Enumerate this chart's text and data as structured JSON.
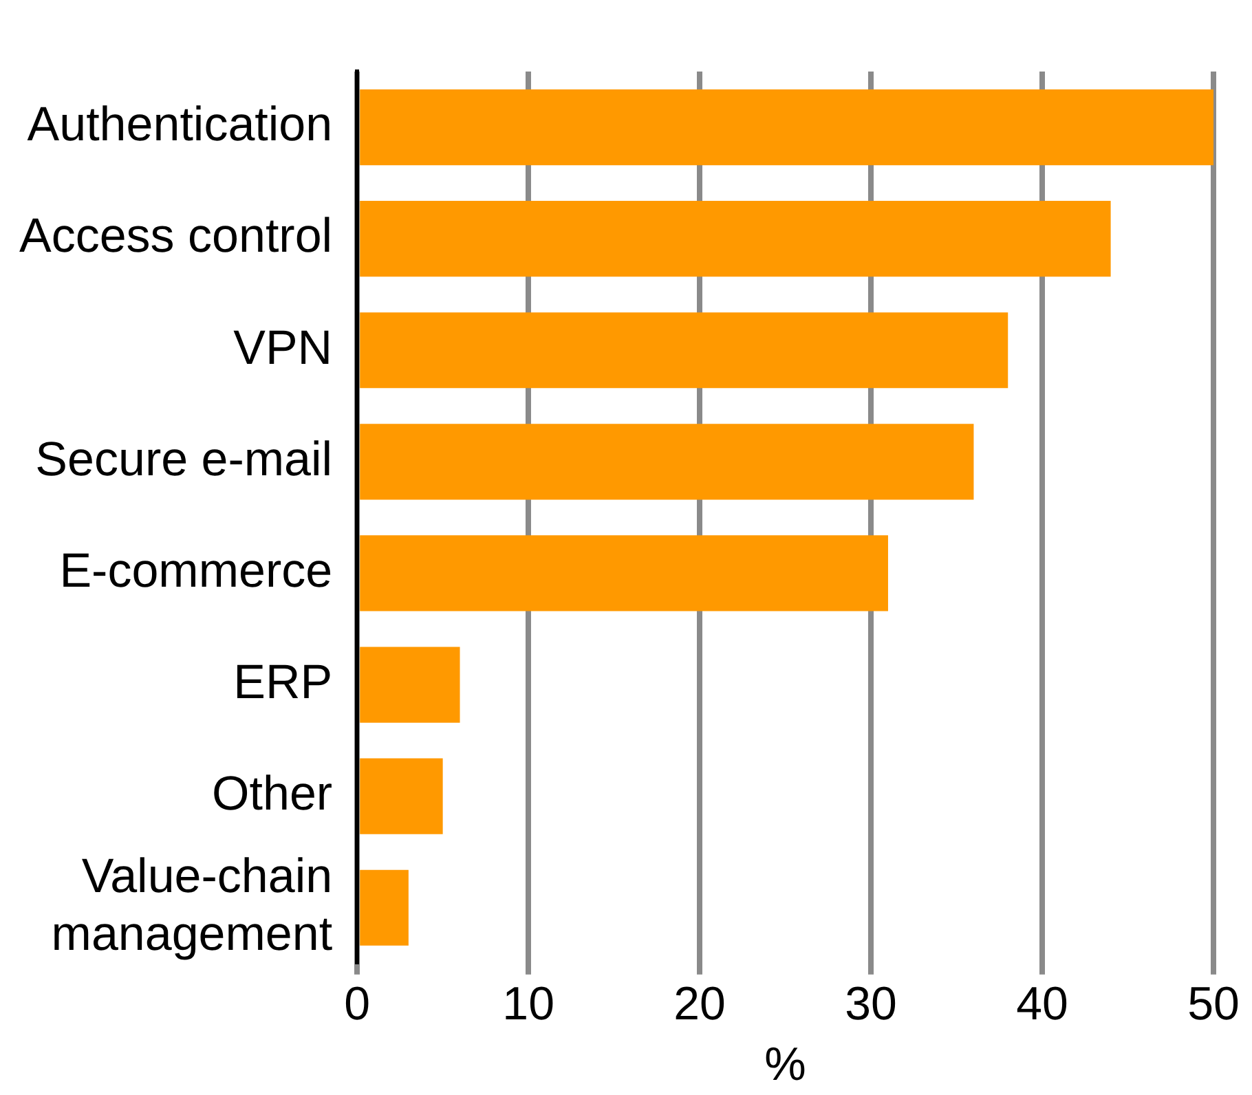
{
  "chart_data": {
    "type": "bar",
    "orientation": "horizontal",
    "xlabel": "%",
    "categories": [
      "Authentication",
      "Access control",
      "VPN",
      "Secure e-mail",
      "E-commerce",
      "ERP",
      "Other",
      "Value-chain management"
    ],
    "values": [
      50,
      44,
      38,
      36,
      31,
      6,
      5,
      3
    ],
    "color": "#ff9900",
    "xlim": [
      0,
      50
    ],
    "xticks": [
      0,
      10,
      20,
      30,
      40,
      50
    ],
    "grid": "x",
    "legend": false
  }
}
